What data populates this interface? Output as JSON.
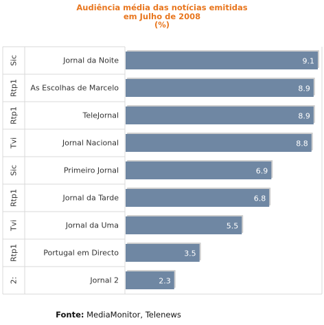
{
  "chart_data": {
    "type": "bar",
    "orientation": "horizontal",
    "title_lines": [
      "Audiência média das notícias emitidas",
      "em Julho de 2008",
      "(%)"
    ],
    "categories": [
      {
        "channel": "Sic",
        "program": "Jornal da Noite",
        "value": 9.1,
        "label": "9.1"
      },
      {
        "channel": "Rtp1",
        "program": "As Escolhas de Marcelo",
        "value": 8.9,
        "label": "8.9"
      },
      {
        "channel": "Rtp1",
        "program": "TeleJornal",
        "value": 8.9,
        "label": "8.9"
      },
      {
        "channel": "Tvi",
        "program": "Jornal Nacional",
        "value": 8.8,
        "label": "8.8"
      },
      {
        "channel": "Sic",
        "program": "Primeiro Jornal",
        "value": 6.9,
        "label": "6.9"
      },
      {
        "channel": "Rtp1",
        "program": "Jornal da Tarde",
        "value": 6.8,
        "label": "6.8"
      },
      {
        "channel": "Tvi",
        "program": "Jornal da Uma",
        "value": 5.5,
        "label": "5.5"
      },
      {
        "channel": "Rtp1",
        "program": "Portugal em Directo",
        "value": 3.5,
        "label": "3.5"
      },
      {
        "channel": "2:",
        "program": "Jornal 2",
        "value": 2.3,
        "label": "2.3"
      }
    ],
    "xlim": [
      0,
      9.1
    ],
    "grid": false,
    "bar_color": "#6f87a3",
    "title_color": "#e8761e"
  },
  "source": {
    "label": "Fonte:",
    "text": " MediaMonitor, Telenews"
  }
}
